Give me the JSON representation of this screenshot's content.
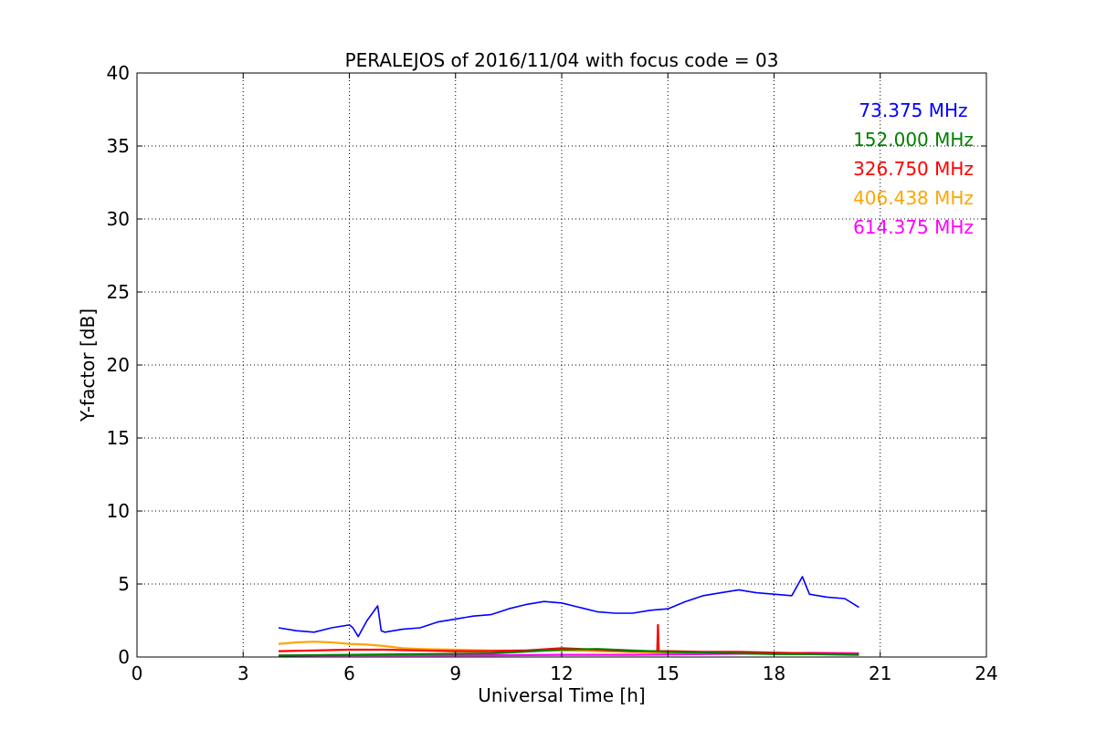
{
  "chart_data": {
    "type": "line",
    "title": "PERALEJOS of 2016/11/04 with focus code = 03",
    "xlabel": "Universal Time [h]",
    "ylabel": "Y-factor [dB]",
    "xlim": [
      0,
      24
    ],
    "ylim": [
      0,
      40
    ],
    "xticks": [
      0,
      3,
      6,
      9,
      12,
      15,
      18,
      21,
      24
    ],
    "yticks": [
      0,
      5,
      10,
      15,
      20,
      25,
      30,
      35,
      40
    ],
    "grid": true,
    "legend_placement": "top-right",
    "series": [
      {
        "name": "73.375 MHz",
        "color": "#0000ff",
        "x": [
          4.0,
          4.5,
          5.0,
          5.5,
          6.0,
          6.1,
          6.25,
          6.5,
          6.8,
          6.9,
          7.0,
          7.5,
          8.0,
          8.5,
          9.0,
          9.5,
          10.0,
          10.5,
          11.0,
          11.5,
          12.0,
          12.5,
          13.0,
          13.5,
          14.0,
          14.5,
          15.0,
          15.5,
          16.0,
          16.5,
          17.0,
          17.5,
          18.0,
          18.5,
          18.8,
          19.0,
          19.5,
          20.0,
          20.4
        ],
        "y": [
          2.0,
          1.8,
          1.7,
          2.0,
          2.2,
          2.0,
          1.4,
          2.5,
          3.5,
          1.8,
          1.7,
          1.9,
          2.0,
          2.4,
          2.6,
          2.8,
          2.9,
          3.3,
          3.6,
          3.8,
          3.7,
          3.4,
          3.1,
          3.0,
          3.0,
          3.2,
          3.3,
          3.8,
          4.2,
          4.4,
          4.6,
          4.4,
          4.3,
          4.2,
          5.5,
          4.3,
          4.1,
          4.0,
          3.4
        ]
      },
      {
        "name": "152.000 MHz",
        "color": "#008000",
        "x": [
          4.0,
          6.0,
          8.0,
          10.0,
          12.0,
          13.0,
          14.0,
          15.0,
          16.0,
          17.0,
          18.0,
          19.0,
          20.4
        ],
        "y": [
          0.1,
          0.15,
          0.2,
          0.25,
          0.5,
          0.55,
          0.45,
          0.35,
          0.3,
          0.25,
          0.2,
          0.2,
          0.15
        ]
      },
      {
        "name": "326.750 MHz",
        "color": "#ff0000",
        "x": [
          4.0,
          5.0,
          6.0,
          7.0,
          8.0,
          9.0,
          10.0,
          11.0,
          12.0,
          13.0,
          14.0,
          14.7,
          14.72,
          14.74,
          15.0,
          16.0,
          17.0,
          18.0,
          19.0,
          20.4
        ],
        "y": [
          0.4,
          0.45,
          0.5,
          0.5,
          0.45,
          0.4,
          0.4,
          0.45,
          0.6,
          0.5,
          0.4,
          0.4,
          2.2,
          0.4,
          0.4,
          0.35,
          0.35,
          0.3,
          0.25,
          0.2
        ]
      },
      {
        "name": "406.438 MHz",
        "color": "#ffa500",
        "x": [
          4.0,
          4.5,
          5.0,
          5.5,
          6.0,
          6.5,
          7.0,
          7.5,
          8.0,
          9.0,
          10.0,
          11.0,
          12.0,
          13.0,
          14.0,
          15.0,
          16.0,
          17.0,
          18.0,
          19.0,
          20.4
        ],
        "y": [
          0.9,
          1.0,
          1.05,
          1.0,
          0.9,
          0.85,
          0.75,
          0.6,
          0.55,
          0.5,
          0.45,
          0.45,
          0.45,
          0.4,
          0.35,
          0.3,
          0.3,
          0.3,
          0.25,
          0.2,
          0.2
        ]
      },
      {
        "name": "614.375 MHz",
        "color": "#ff00ff",
        "x": [
          4.0,
          6.0,
          8.0,
          10.0,
          12.0,
          14.0,
          16.0,
          18.0,
          19.0,
          20.4
        ],
        "y": [
          0.1,
          0.12,
          0.12,
          0.12,
          0.15,
          0.15,
          0.2,
          0.25,
          0.28,
          0.25
        ]
      }
    ]
  }
}
